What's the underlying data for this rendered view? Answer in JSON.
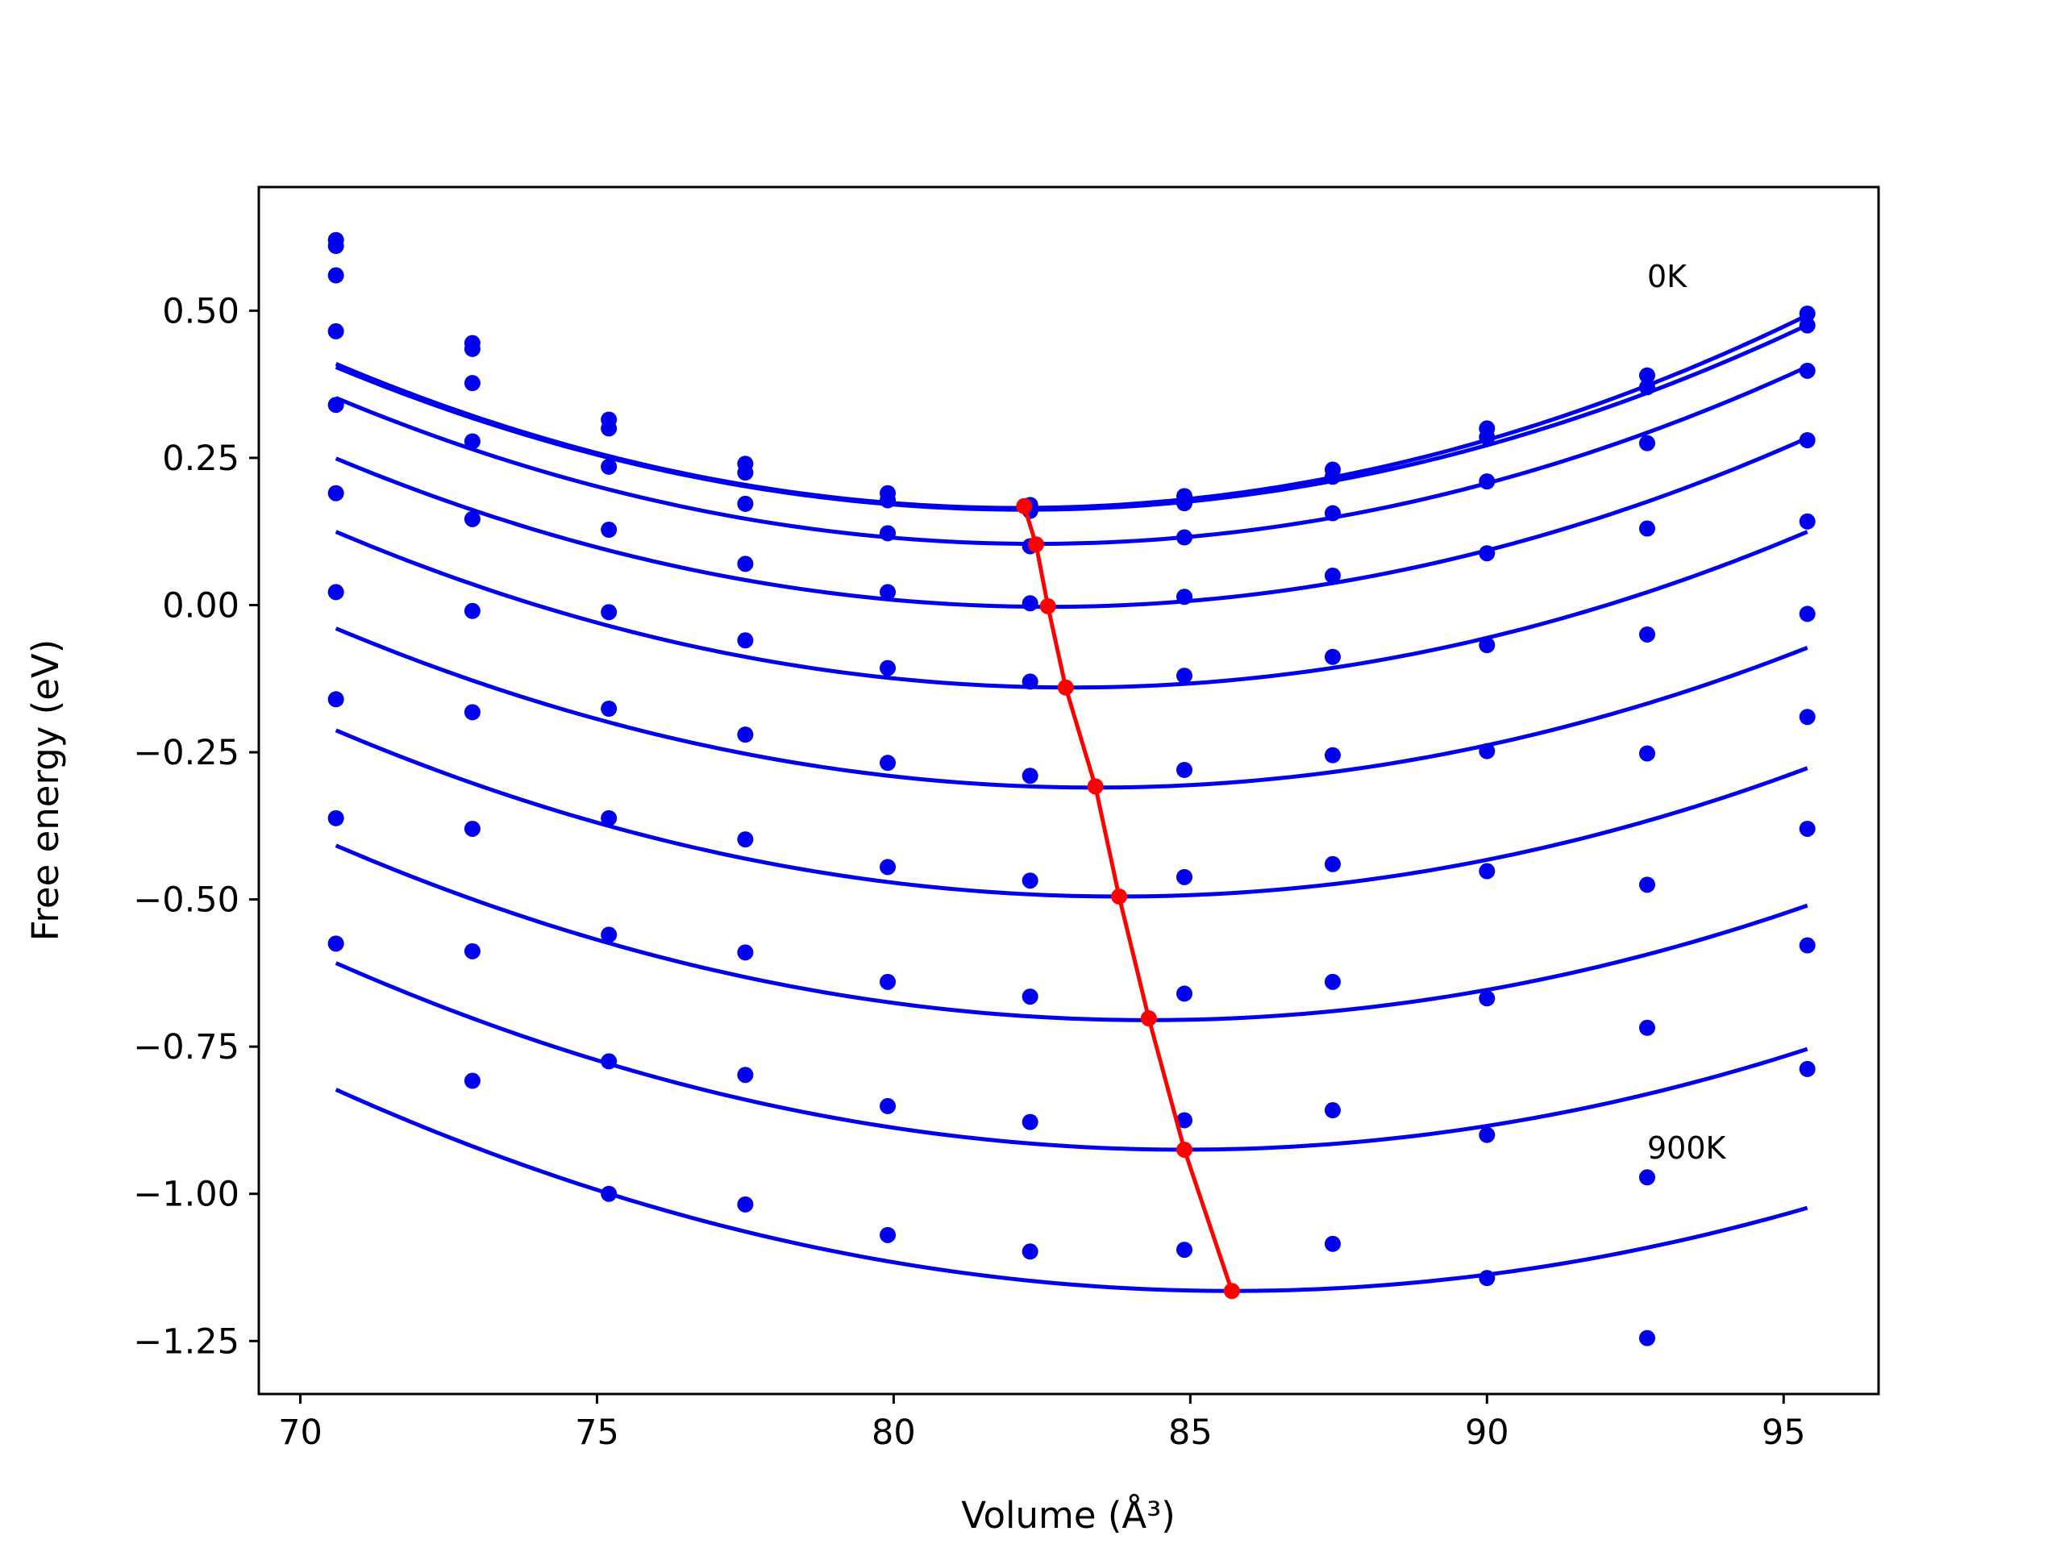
{
  "chart_data": {
    "type": "scatter",
    "xlabel": "Volume (Å³)",
    "ylabel": "Free energy (eV)",
    "xlim": [
      69.3,
      96.6
    ],
    "ylim": [
      -1.34,
      0.71
    ],
    "xticks": [
      70,
      75,
      80,
      85,
      90,
      95
    ],
    "yticks": [
      -1.25,
      -1.0,
      -0.75,
      -0.5,
      -0.25,
      0.0,
      0.25,
      0.5
    ],
    "ytick_labels": [
      "−1.25",
      "−1.00",
      "−0.75",
      "−0.50",
      "−0.25",
      "0.00",
      "0.25",
      "0.50"
    ],
    "grid": false,
    "annotations": [
      {
        "text": "0K",
        "x": 92.7,
        "y": 0.54
      },
      {
        "text": "900K",
        "x": 92.7,
        "y": -0.94
      }
    ],
    "volumes": [
      70.6,
      72.9,
      75.2,
      77.5,
      79.9,
      82.3,
      84.9,
      87.4,
      90.0,
      92.7,
      95.4
    ],
    "series": [
      {
        "fit": {
          "a": 0.00185,
          "v0": 82.1,
          "e0": 0.165
        },
        "points": [
          0.62,
          0.445,
          0.315,
          0.24,
          0.19,
          0.17,
          0.185,
          0.23,
          0.3,
          0.39,
          0.495
        ]
      },
      {
        "fit": {
          "a": 0.0018,
          "v0": 82.2,
          "e0": 0.162
        },
        "points": [
          0.61,
          0.435,
          0.3,
          0.225,
          0.178,
          0.16,
          0.173,
          0.218,
          0.285,
          0.37,
          0.475
        ]
      },
      {
        "fit": {
          "a": 0.00178,
          "v0": 82.4,
          "e0": 0.104
        },
        "points": [
          0.56,
          0.377,
          0.235,
          0.172,
          0.122,
          0.1,
          0.115,
          0.156,
          0.21,
          0.275,
          0.398
        ]
      },
      {
        "fit": {
          "a": 0.00175,
          "v0": 82.6,
          "e0": -0.003
        },
        "points": [
          0.465,
          0.278,
          0.128,
          0.07,
          0.022,
          0.003,
          0.014,
          0.05,
          0.088,
          0.13,
          0.28
        ]
      },
      {
        "fit": {
          "a": 0.00172,
          "v0": 83.0,
          "e0": -0.14
        },
        "points": [
          0.34,
          0.146,
          -0.012,
          -0.06,
          -0.107,
          -0.13,
          -0.12,
          -0.088,
          -0.068,
          -0.05,
          0.142
        ]
      },
      {
        "fit": {
          "a": 0.00165,
          "v0": 83.4,
          "e0": -0.31
        },
        "points": [
          0.19,
          -0.01,
          -0.176,
          -0.22,
          -0.268,
          -0.29,
          -0.28,
          -0.255,
          -0.248,
          -0.252,
          -0.015
        ]
      },
      {
        "fit": {
          "a": 0.00162,
          "v0": 83.8,
          "e0": -0.495
        },
        "points": [
          0.022,
          -0.182,
          -0.362,
          -0.398,
          -0.445,
          -0.468,
          -0.462,
          -0.44,
          -0.452,
          -0.475,
          -0.19
        ]
      },
      {
        "fit": {
          "a": 0.00158,
          "v0": 84.3,
          "e0": -0.705
        },
        "points": [
          -0.16,
          -0.38,
          -0.56,
          -0.59,
          -0.64,
          -0.665,
          -0.66,
          -0.64,
          -0.668,
          -0.718,
          -0.38
        ]
      },
      {
        "fit": {
          "a": 0.00155,
          "v0": 84.9,
          "e0": -0.925
        },
        "points": [
          -0.362,
          -0.588,
          -0.775,
          -0.798,
          -0.851,
          -0.878,
          -0.875,
          -0.858,
          -0.9,
          -0.972,
          -0.578
        ]
      },
      {
        "fit": {
          "a": 0.0015,
          "v0": 85.7,
          "e0": -1.165
        },
        "points": [
          -0.575,
          -0.808,
          -1.0,
          -1.018,
          -1.07,
          -1.098,
          -1.095,
          -1.085,
          -1.143,
          -1.245,
          -0.788
        ]
      }
    ],
    "minima_line": {
      "x": [
        82.2,
        82.4,
        82.6,
        82.9,
        83.4,
        83.8,
        84.3,
        84.9,
        85.7
      ],
      "y": [
        0.168,
        0.103,
        -0.002,
        -0.14,
        -0.308,
        -0.495,
        -0.702,
        -0.925,
        -1.165
      ]
    },
    "colors": {
      "fit": "#0000ee",
      "points": "#0000ee",
      "minima": "#ff0000"
    }
  }
}
